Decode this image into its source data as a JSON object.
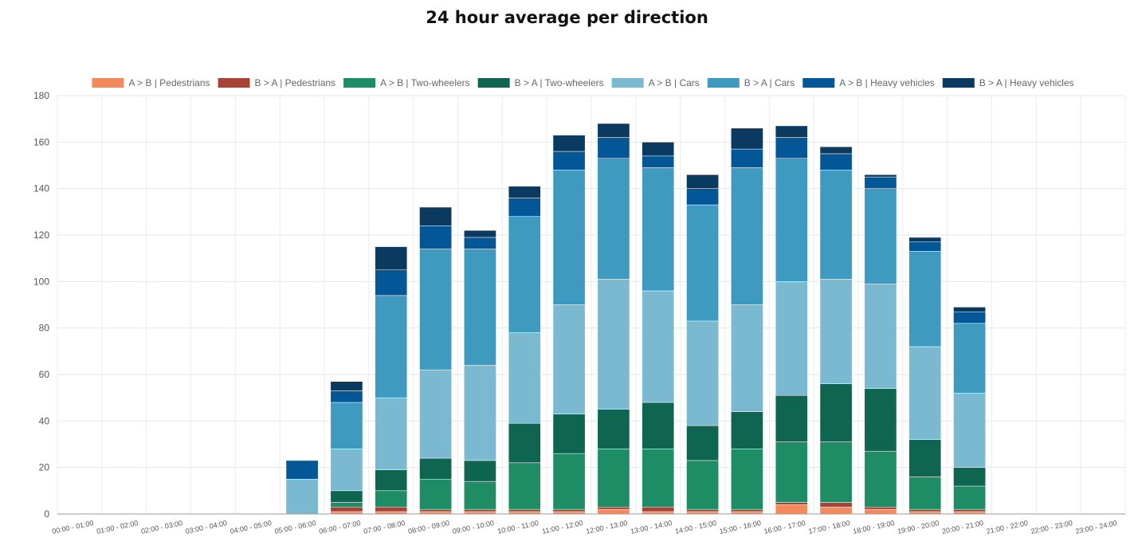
{
  "chart_data": {
    "type": "bar",
    "stacked": true,
    "title": "24 hour average per direction",
    "xlabel": "",
    "ylabel": "",
    "ylim": [
      0,
      180
    ],
    "yticks": [
      0,
      20,
      40,
      60,
      80,
      100,
      120,
      140,
      160,
      180
    ],
    "grid": true,
    "legend_position": "top",
    "categories": [
      "00:00 - 01:00",
      "01:00 - 02:00",
      "02:00 - 03:00",
      "03:00 - 04:00",
      "04:00 - 05:00",
      "05:00 - 06:00",
      "06:00 - 07:00",
      "07:00 - 08:00",
      "08:00 - 09:00",
      "09:00 - 10:00",
      "10:00 - 11:00",
      "11:00 - 12:00",
      "12:00 - 13:00",
      "13:00 - 14:00",
      "14:00 - 15:00",
      "15:00 - 16:00",
      "16:00 - 17:00",
      "17:00 - 18:00",
      "18:00 - 19:00",
      "19:00 - 20:00",
      "20:00 - 21:00",
      "21:00 - 22:00",
      "22:00 - 23:00",
      "23:00 - 24:00"
    ],
    "series": [
      {
        "name": "A > B | Pedestrians",
        "color": "#f28a5e",
        "values": [
          0,
          0,
          0,
          0,
          0,
          0,
          1,
          1,
          1,
          1,
          1,
          1,
          2,
          1,
          1,
          1,
          4,
          3,
          2,
          1,
          1,
          0,
          0,
          0
        ]
      },
      {
        "name": "B > A | Pedestrians",
        "color": "#a64535",
        "values": [
          0,
          0,
          0,
          0,
          0,
          0,
          2,
          2,
          1,
          1,
          1,
          1,
          1,
          2,
          1,
          1,
          1,
          2,
          1,
          1,
          1,
          0,
          0,
          0
        ]
      },
      {
        "name": "A > B | Two-wheelers",
        "color": "#1e8c64",
        "values": [
          0,
          0,
          0,
          0,
          0,
          0,
          2,
          7,
          13,
          12,
          20,
          24,
          25,
          25,
          21,
          26,
          26,
          26,
          24,
          14,
          10,
          0,
          0,
          0
        ]
      },
      {
        "name": "B > A | Two-wheelers",
        "color": "#0f6650",
        "values": [
          0,
          0,
          0,
          0,
          0,
          0,
          5,
          9,
          9,
          9,
          17,
          17,
          17,
          20,
          15,
          16,
          20,
          25,
          27,
          16,
          8,
          0,
          0,
          0
        ]
      },
      {
        "name": "A > B | Cars",
        "color": "#7ab9cf",
        "values": [
          0,
          0,
          0,
          0,
          0,
          15,
          18,
          31,
          38,
          41,
          39,
          47,
          56,
          48,
          45,
          46,
          49,
          45,
          45,
          40,
          32,
          0,
          0,
          0
        ]
      },
      {
        "name": "B > A | Cars",
        "color": "#3e9bbf",
        "values": [
          0,
          0,
          0,
          0,
          0,
          0,
          20,
          44,
          52,
          50,
          50,
          58,
          52,
          53,
          50,
          59,
          53,
          47,
          41,
          41,
          30,
          0,
          0,
          0
        ]
      },
      {
        "name": "A > B | Heavy vehicles",
        "color": "#045797",
        "values": [
          0,
          0,
          0,
          0,
          0,
          8,
          5,
          11,
          10,
          5,
          8,
          8,
          9,
          5,
          7,
          8,
          9,
          7,
          5,
          4,
          5,
          0,
          0,
          0
        ]
      },
      {
        "name": "B > A | Heavy vehicles",
        "color": "#0b3a61",
        "values": [
          0,
          0,
          0,
          0,
          0,
          0,
          4,
          10,
          8,
          3,
          5,
          7,
          6,
          6,
          6,
          9,
          5,
          3,
          1,
          2,
          2,
          0,
          0,
          0
        ]
      }
    ]
  }
}
